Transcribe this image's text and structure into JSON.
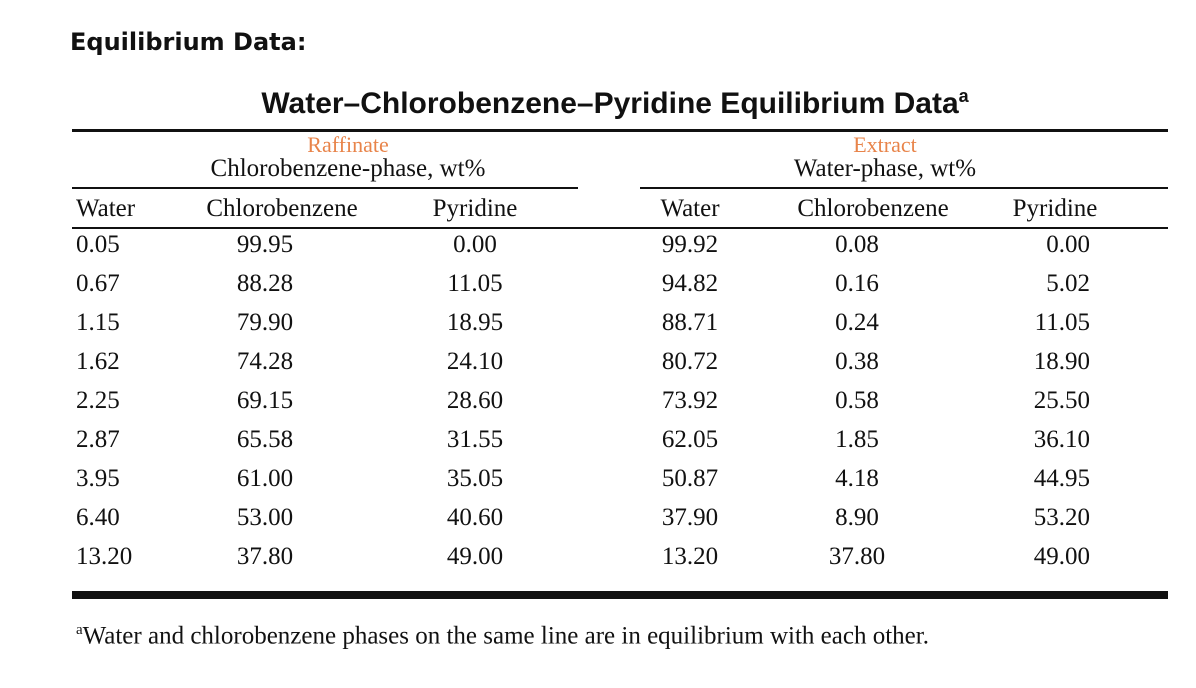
{
  "heading": "Equilibrium Data:",
  "table": {
    "title": "Water–Chlorobenzene–Pyridine Equilibrium Data",
    "title_note": "a",
    "groups": [
      {
        "label": "Raffinate",
        "caption": "Chlorobenzene-phase, wt%"
      },
      {
        "label": "Extract",
        "caption": "Water-phase, wt%"
      }
    ],
    "columns": [
      "Water",
      "Chlorobenzene",
      "Pyridine",
      "Water",
      "Chlorobenzene",
      "Pyridine"
    ],
    "rows": [
      [
        "0.05",
        "99.95",
        "0.00",
        "99.92",
        "0.08",
        "0.00"
      ],
      [
        "0.67",
        "88.28",
        "11.05",
        "94.82",
        "0.16",
        "5.02"
      ],
      [
        "1.15",
        "79.90",
        "18.95",
        "88.71",
        "0.24",
        "11.05"
      ],
      [
        "1.62",
        "74.28",
        "24.10",
        "80.72",
        "0.38",
        "18.90"
      ],
      [
        "2.25",
        "69.15",
        "28.60",
        "73.92",
        "0.58",
        "25.50"
      ],
      [
        "2.87",
        "65.58",
        "31.55",
        "62.05",
        "1.85",
        "36.10"
      ],
      [
        "3.95",
        "61.00",
        "35.05",
        "50.87",
        "4.18",
        "44.95"
      ],
      [
        "6.40",
        "53.00",
        "40.60",
        "37.90",
        "8.90",
        "53.20"
      ],
      [
        "13.20",
        "37.80",
        "49.00",
        "13.20",
        "37.80",
        "49.00"
      ]
    ]
  },
  "footnote": {
    "marker": "a",
    "text": "Water and chlorobenzene phases on the same line are in equilibrium with each other."
  }
}
